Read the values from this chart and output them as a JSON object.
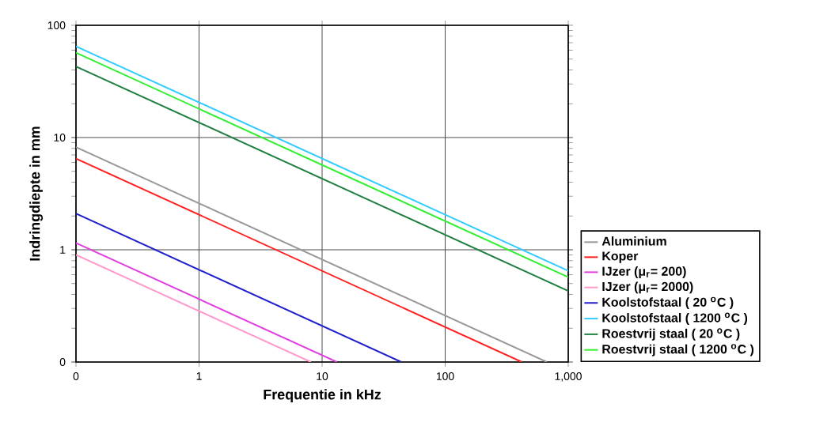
{
  "chart_data": {
    "type": "line",
    "xlabel": "Frequentie in kHz",
    "ylabel": "Indringdiepte in mm",
    "log": "xy",
    "grid": true,
    "legend": "right",
    "line_style": "solid",
    "marker": "none",
    "xlim": [
      0.1,
      1000
    ],
    "ylim": [
      0.1,
      100
    ],
    "xticks": [
      {
        "value": 0.1,
        "label": "0"
      },
      1,
      10,
      100,
      {
        "value": 1000,
        "label": "1,000"
      }
    ],
    "yticks": [
      {
        "value": 0.1,
        "label": "0"
      },
      1,
      10,
      100
    ],
    "series": [
      {
        "name": "Aluminium",
        "color": "#999999",
        "x": [
          0.1,
          670
        ],
        "values": [
          8.2,
          0.1
        ]
      },
      {
        "name": "Koper",
        "color": "#ff2020",
        "x": [
          0.1,
          420
        ],
        "values": [
          6.5,
          0.1
        ]
      },
      {
        "name": "IJzer (μ$_{r}$= 200)",
        "color": "#e040e0",
        "x": [
          0.1,
          13.2
        ],
        "values": [
          1.15,
          0.1
        ]
      },
      {
        "name": "IJzer (μ$_{r}$= 2000)",
        "color": "#ff99cc",
        "x": [
          0.1,
          8.1
        ],
        "values": [
          0.9,
          0.1
        ]
      },
      {
        "name": "Koolstofstaal ( 20 $^{o}$C )",
        "color": "#2020cc",
        "x": [
          0.1,
          44
        ],
        "values": [
          2.1,
          0.1
        ]
      },
      {
        "name": "Koolstofstaal ( 1200 $^{o}$C )",
        "color": "#33ccff",
        "x": [
          0.1,
          1000
        ],
        "values": [
          65,
          0.65
        ]
      },
      {
        "name": "Roestvrij staal ( 20 $^{o}$C )",
        "color": "#208040",
        "x": [
          0.1,
          1000
        ],
        "values": [
          43,
          0.43
        ]
      },
      {
        "name": "Roestvrij staal ( 1200 $^{o}$C )",
        "color": "#33ee33",
        "x": [
          0.1,
          1000
        ],
        "values": [
          57,
          0.57
        ]
      }
    ]
  }
}
